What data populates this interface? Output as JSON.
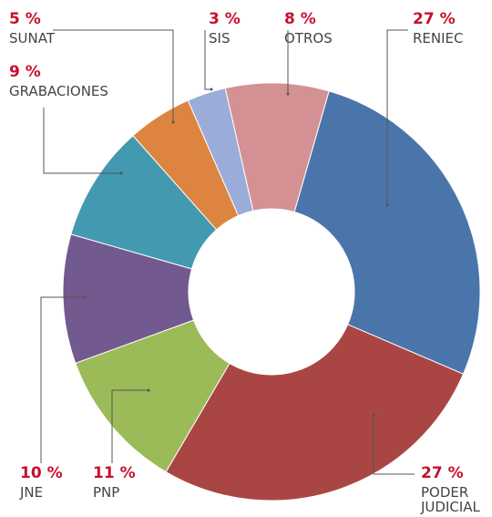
{
  "chart_data": {
    "type": "donut",
    "categories": [
      "RENIEC",
      "PODER JUDICIAL",
      "PNP",
      "JNE",
      "GRABACIONES",
      "SUNAT",
      "SIS",
      "OTROS"
    ],
    "values": [
      27,
      27,
      11,
      10,
      9,
      5,
      3,
      8
    ],
    "value_labels": [
      "27 %",
      "27 %",
      "11 %",
      "10 %",
      "9 %",
      "5 %",
      "3 %",
      "8 %"
    ],
    "colors": [
      "#4a75aa",
      "#a94644",
      "#9bbb59",
      "#72598f",
      "#4399b0",
      "#dd8540",
      "#9aadd8",
      "#d49193"
    ]
  }
}
